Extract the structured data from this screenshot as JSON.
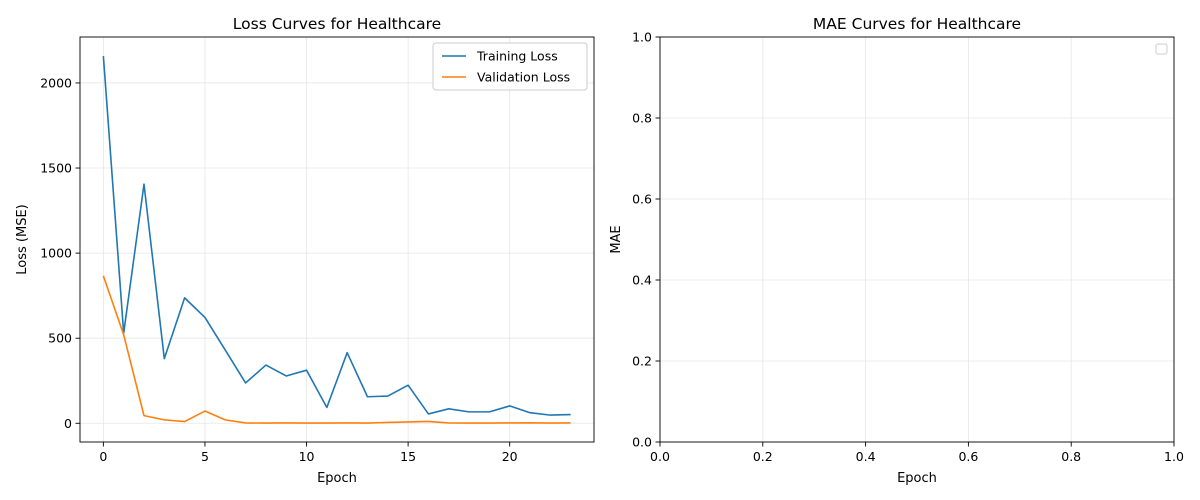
{
  "chart_data": [
    {
      "type": "line",
      "title": "Loss Curves for Healthcare",
      "xlabel": "Epoch",
      "ylabel": "Loss (MSE)",
      "xlim": [
        -1.15,
        24.15
      ],
      "ylim": [
        -110,
        2270
      ],
      "xticks": [
        0,
        5,
        10,
        15,
        20
      ],
      "yticks": [
        0,
        500,
        1000,
        1500,
        2000
      ],
      "grid": true,
      "legend": "top-right",
      "x": [
        0,
        1,
        2,
        3,
        4,
        5,
        6,
        7,
        8,
        9,
        10,
        11,
        12,
        13,
        14,
        15,
        16,
        17,
        18,
        19,
        20,
        21,
        22,
        23
      ],
      "series": [
        {
          "name": "Training Loss",
          "color": "#1f77b4",
          "values": [
            2158,
            530,
            1405,
            380,
            737,
            622,
            430,
            237,
            342,
            278,
            312,
            93,
            415,
            156,
            160,
            224,
            55,
            85,
            67,
            67,
            102,
            62,
            48,
            51
          ]
        },
        {
          "name": "Validation Loss",
          "color": "#ff7f0e",
          "values": [
            866,
            520,
            45,
            20,
            10,
            72,
            20,
            2,
            1,
            2,
            1,
            1,
            2,
            1,
            5,
            8,
            11,
            2,
            1,
            1,
            2,
            3,
            1,
            2
          ]
        }
      ]
    },
    {
      "type": "line",
      "title": "MAE Curves for Healthcare",
      "xlabel": "Epoch",
      "ylabel": "MAE",
      "xlim": [
        0,
        1
      ],
      "ylim": [
        0,
        1
      ],
      "xticks": [
        "0.0",
        "0.2",
        "0.4",
        "0.6",
        "0.8",
        "1.0"
      ],
      "yticks": [
        "0.0",
        "0.2",
        "0.4",
        "0.6",
        "0.8",
        "1.0"
      ],
      "grid": true,
      "legend": "top-right",
      "series": []
    }
  ]
}
